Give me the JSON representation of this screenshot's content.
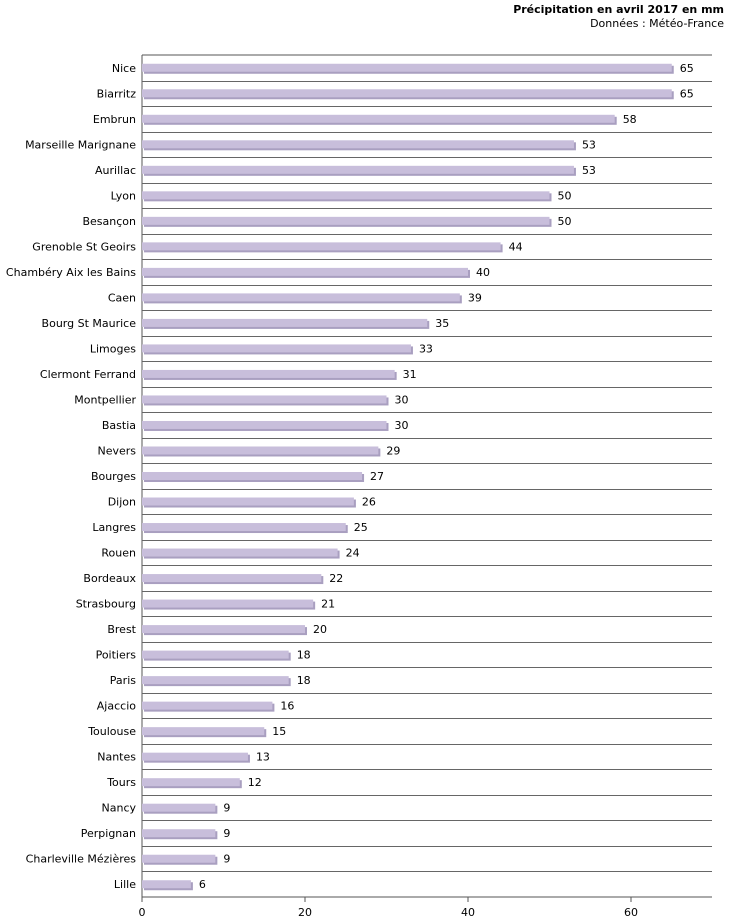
{
  "chart_data": {
    "type": "bar",
    "orientation": "horizontal",
    "title": "Précipitation en avril 2017 en mm",
    "subtitle": "Données : Météo-France",
    "xlabel": "",
    "ylabel": "",
    "xlim": [
      0,
      70
    ],
    "xticks": [
      0,
      20,
      40,
      60
    ],
    "grid": "horizontal-lines",
    "bar_color": "#c8bedb",
    "bar_shadow_color": "#a99fc0",
    "categories": [
      "Nice",
      "Biarritz",
      "Embrun",
      "Marseille Marignane",
      "Aurillac",
      "Lyon",
      "Besançon",
      "Grenoble St Geoirs",
      "Chambéry Aix les Bains",
      "Caen",
      "Bourg St Maurice",
      "Limoges",
      "Clermont Ferrand",
      "Montpellier",
      "Bastia",
      "Nevers",
      "Bourges",
      "Dijon",
      "Langres",
      "Rouen",
      "Bordeaux",
      "Strasbourg",
      "Brest",
      "Poitiers",
      "Paris",
      "Ajaccio",
      "Toulouse",
      "Nantes",
      "Tours",
      "Nancy",
      "Perpignan",
      "Charleville Mézières",
      "Lille"
    ],
    "values": [
      65,
      65,
      58,
      53,
      53,
      50,
      50,
      44,
      40,
      39,
      35,
      33,
      31,
      30,
      30,
      29,
      27,
      26,
      25,
      24,
      22,
      21,
      20,
      18,
      18,
      16,
      15,
      13,
      12,
      9,
      9,
      9,
      6
    ]
  }
}
